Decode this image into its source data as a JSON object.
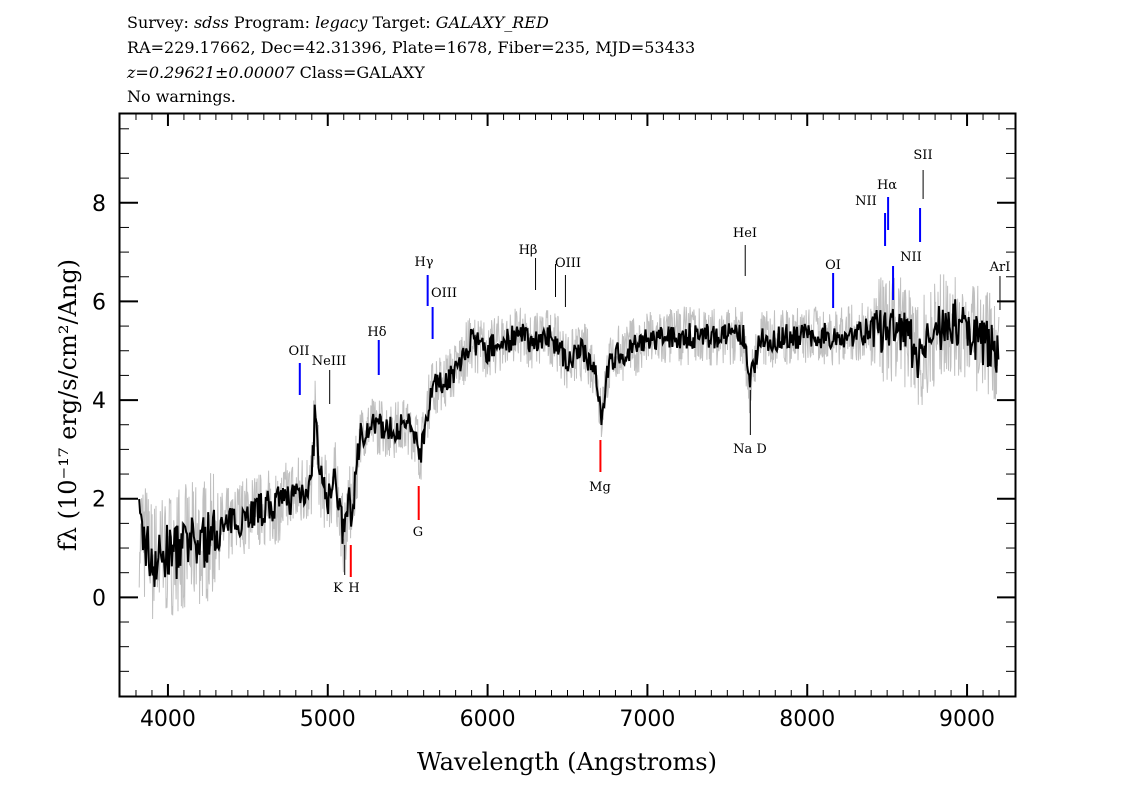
{
  "header": {
    "survey_label": "Survey:",
    "survey": "sdss",
    "program_label": "Program:",
    "program": "legacy",
    "target_label": "Target:",
    "target": "GALAXY_RED",
    "line2": "RA=229.17662, Dec=42.31396, Plate=1678, Fiber=235, MJD=53433",
    "redshift": "z=0.29621±0.00007",
    "class": "Class=GALAXY",
    "warnings": "No warnings."
  },
  "chart_data": {
    "type": "line",
    "xlabel": "Wavelength (Angstroms)",
    "ylabel": "fλ (10⁻¹⁷ erg/s/cm²/Ang)",
    "xlim": [
      3700,
      9300
    ],
    "ylim": [
      -2,
      9.8
    ],
    "xticks": [
      4000,
      5000,
      6000,
      7000,
      8000,
      9000
    ],
    "yticks": [
      0,
      2,
      4,
      6,
      8
    ],
    "x_minor_step": 100,
    "y_minor_step": 0.5,
    "grid": false,
    "colors": {
      "flux": "#000000",
      "error": "#c0c0c0",
      "emission": "#0000ff",
      "absorption": "#ff0000",
      "sky": "#000000"
    },
    "series": [
      {
        "role": "flux",
        "x": [
          3820,
          3900,
          4000,
          4100,
          4200,
          4300,
          4400,
          4500,
          4600,
          4700,
          4800,
          4900,
          4920,
          4950,
          5000,
          5050,
          5100,
          5130,
          5150,
          5200,
          5300,
          5400,
          5500,
          5550,
          5580,
          5650,
          5700,
          5800,
          5900,
          6000,
          6100,
          6200,
          6300,
          6400,
          6500,
          6600,
          6680,
          6710,
          6750,
          6800,
          7000,
          7200,
          7400,
          7600,
          7640,
          7700,
          7900,
          8000,
          8200,
          8400,
          8600,
          8700,
          8800,
          8900,
          9000,
          9100,
          9200
        ],
        "y": [
          1.5,
          0.7,
          0.9,
          1.0,
          1.1,
          1.3,
          1.5,
          1.7,
          1.8,
          1.9,
          2.1,
          2.3,
          3.8,
          2.4,
          2.0,
          2.4,
          1.2,
          2.0,
          1.6,
          3.3,
          3.5,
          3.4,
          3.5,
          3.3,
          2.9,
          4.3,
          4.3,
          4.6,
          5.2,
          5.0,
          5.2,
          5.3,
          5.2,
          5.3,
          4.8,
          5.0,
          4.6,
          3.6,
          4.6,
          4.9,
          5.2,
          5.3,
          5.3,
          5.3,
          4.3,
          5.2,
          5.3,
          5.3,
          5.3,
          5.4,
          5.4,
          4.9,
          5.4,
          5.6,
          5.4,
          5.2,
          5.0
        ]
      }
    ],
    "lines": [
      {
        "label": "OII",
        "wavelength": 4825,
        "kind": "emission",
        "position": "above"
      },
      {
        "label": "NeIII",
        "wavelength": 5012,
        "kind": "sky",
        "position": "above"
      },
      {
        "label": "K",
        "wavelength": 5106,
        "kind": "sky",
        "position": "below"
      },
      {
        "label": "H",
        "wavelength": 5144,
        "kind": "absorption",
        "position": "below"
      },
      {
        "label": "Hδ",
        "wavelength": 5319,
        "kind": "emission",
        "position": "above"
      },
      {
        "label": "G",
        "wavelength": 5569,
        "kind": "absorption",
        "position": "below"
      },
      {
        "label": "Hγ",
        "wavelength": 5625,
        "kind": "emission",
        "position": "above"
      },
      {
        "label": "OIII",
        "wavelength": 5656,
        "kind": "emission",
        "position": "above"
      },
      {
        "label": "Hβ",
        "wavelength": 6300,
        "kind": "sky",
        "position": "above"
      },
      {
        "label": "OIII",
        "wavelength": 6425,
        "kind": "sky",
        "position": "above"
      },
      {
        "label": "",
        "wavelength": 6487,
        "kind": "sky",
        "position": "above"
      },
      {
        "label": "Mg",
        "wavelength": 6706,
        "kind": "absorption",
        "position": "below"
      },
      {
        "label": "HeI",
        "wavelength": 7612,
        "kind": "sky",
        "position": "above"
      },
      {
        "label": "Na D",
        "wavelength": 7644,
        "kind": "sky",
        "position": "below"
      },
      {
        "label": "OI",
        "wavelength": 8162,
        "kind": "emission",
        "position": "above"
      },
      {
        "label": "NII",
        "wavelength": 8487,
        "kind": "emission",
        "position": "above"
      },
      {
        "label": "Hα",
        "wavelength": 8506,
        "kind": "emission",
        "position": "above"
      },
      {
        "label": "NII",
        "wavelength": 8537,
        "kind": "emission",
        "position": "above"
      },
      {
        "label": "",
        "wavelength": 8706,
        "kind": "emission",
        "position": "above"
      },
      {
        "label": "SII",
        "wavelength": 8725,
        "kind": "sky",
        "position": "above"
      },
      {
        "label": "ArI",
        "wavelength": 9206,
        "kind": "sky",
        "position": "above"
      }
    ]
  }
}
